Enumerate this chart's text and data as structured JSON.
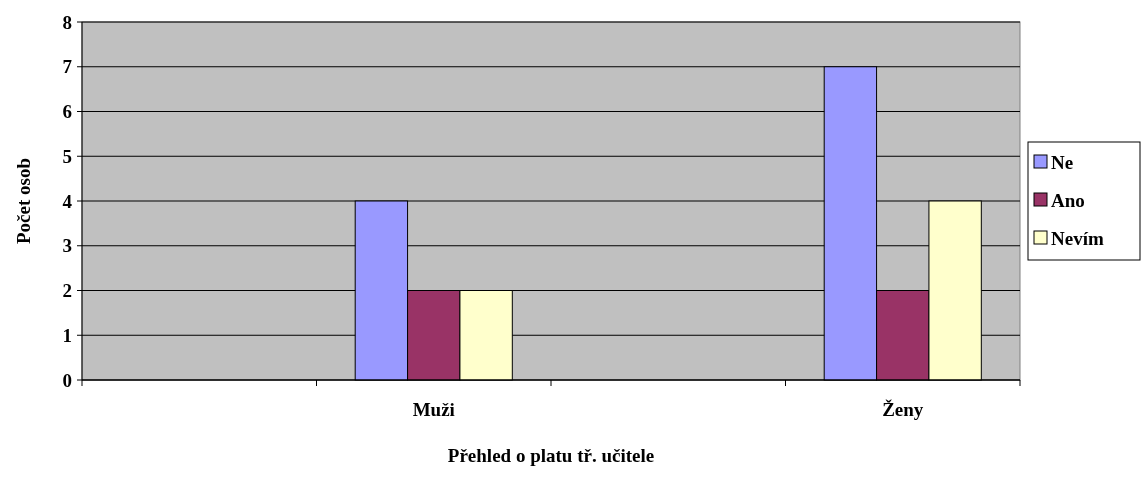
{
  "chart_data": {
    "type": "bar",
    "xlabel": "Přehled o platu tř. učitele",
    "ylabel": "Počet osob",
    "categories": [
      null,
      "Muži",
      null,
      "Ženy"
    ],
    "series": [
      {
        "name": "Ne",
        "color": "#9999ff",
        "values": [
          null,
          4,
          null,
          7
        ]
      },
      {
        "name": "Ano",
        "color": "#993366",
        "values": [
          null,
          2,
          null,
          2
        ]
      },
      {
        "name": "Nevím",
        "color": "#ffffcc",
        "values": [
          null,
          2,
          null,
          4
        ]
      }
    ],
    "ylim": [
      0,
      8
    ],
    "yticks": [
      0,
      1,
      2,
      3,
      4,
      5,
      6,
      7,
      8
    ],
    "grid": "y",
    "legend": "right"
  }
}
